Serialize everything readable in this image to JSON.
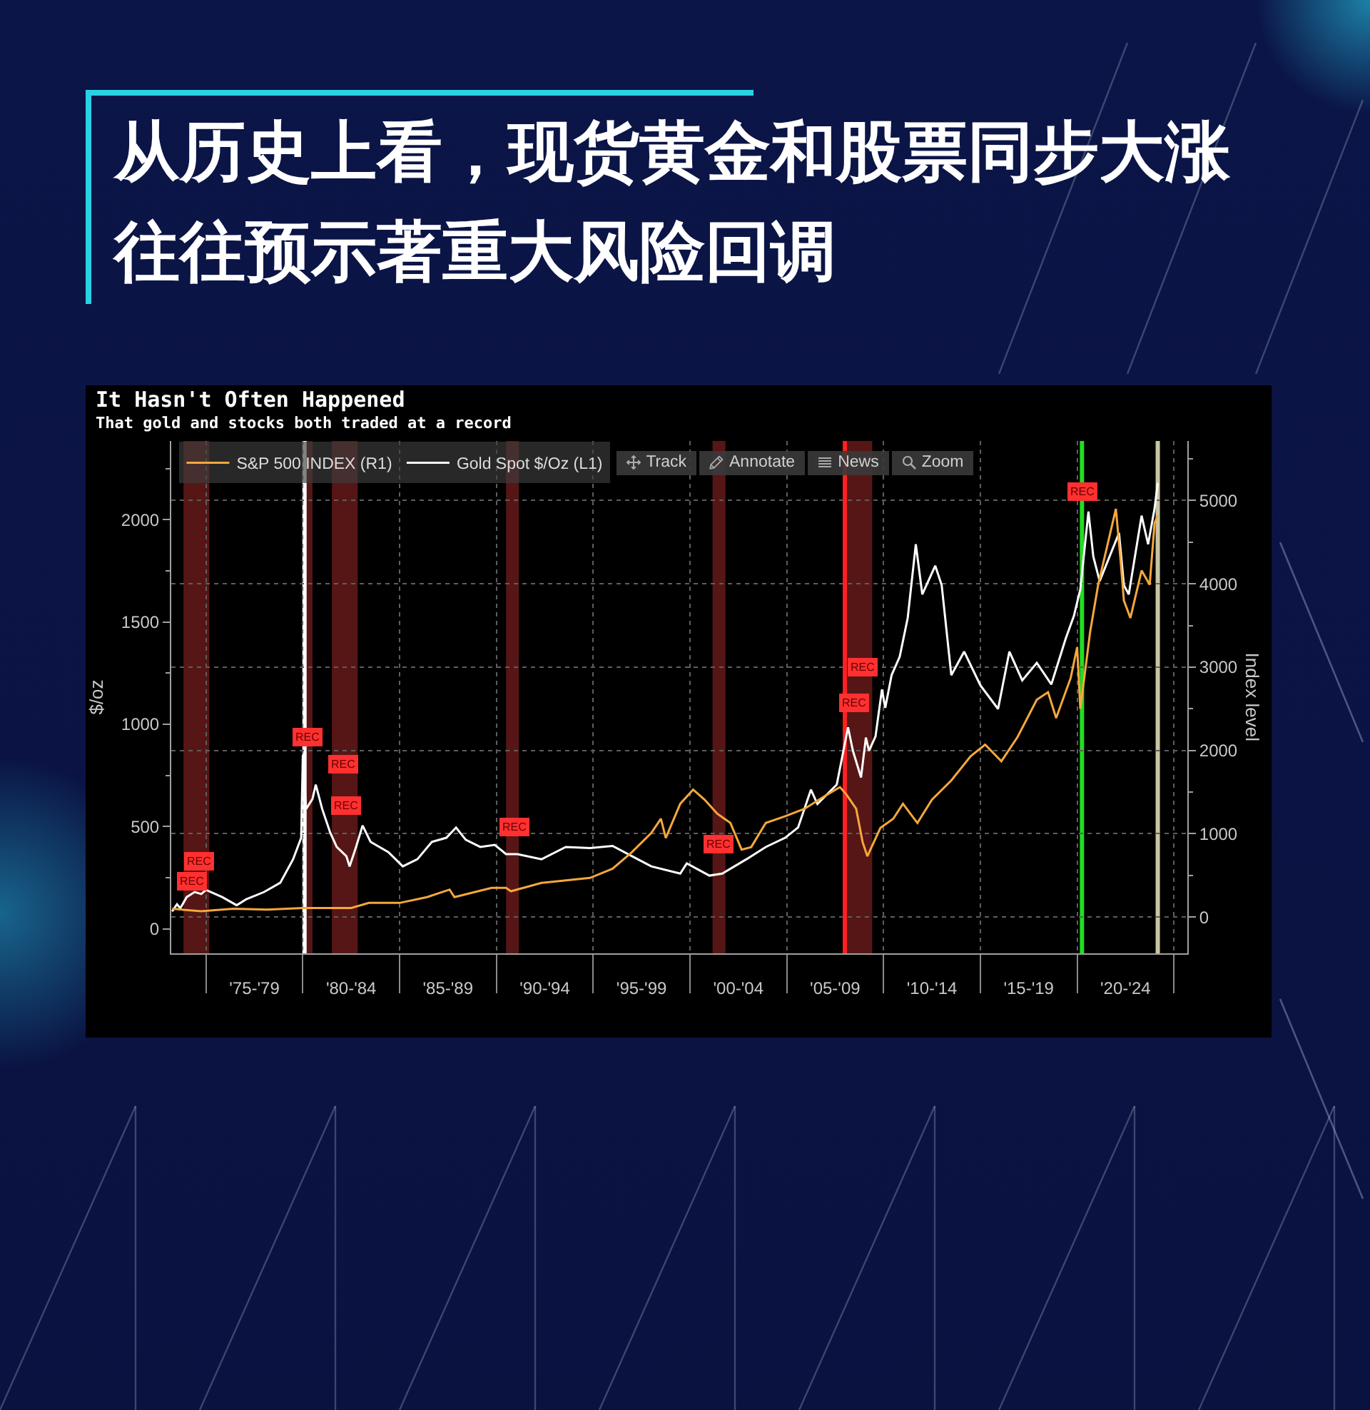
{
  "chart_data": {
    "type": "line",
    "title": "从历史上看，现货黄金和股票同步大涨往往预示著重大风险回调",
    "subtitle": "It Hasn't Often Happened",
    "annotations": [
      "That gold and stocks both traded at a record",
      "Track",
      "Annotate",
      "News",
      "Zoom",
      {
        "text": "REC",
        "x": "1974-09",
        "y": 330
      },
      {
        "text": "REC",
        "x": "1974-04",
        "y": 230
      },
      {
        "text": "REC",
        "x": "1980-04",
        "y": 935
      },
      {
        "text": "REC",
        "x": "1982-02",
        "y": 805
      },
      {
        "text": "REC",
        "x": "1982-04",
        "y": 605
      },
      {
        "text": "REC",
        "x": "1990-12",
        "y": 500
      },
      {
        "text": "REC",
        "x": "2001-07",
        "y": 415
      },
      {
        "text": "REC",
        "x": "2008-12",
        "y": 1280
      },
      {
        "text": "REC",
        "x": "2008-07",
        "y": 1105
      },
      {
        "text": "REC",
        "x": "2020-04",
        "y": 2140
      }
    ],
    "ylabel": "$/oz",
    "y2label": "Index level",
    "xlim": [
      "1973-03-15",
      "2025-09-10"
    ],
    "xticks": [
      {
        "value": "1975-01",
        "label": null
      },
      {
        "value": "1977-07",
        "label": "'75-'79"
      },
      {
        "value": "1980-01",
        "label": null
      },
      {
        "value": "1982-07",
        "label": "'80-'84"
      },
      {
        "value": "1985-01",
        "label": null
      },
      {
        "value": "1987-07",
        "label": "'85-'89"
      },
      {
        "value": "1990-01",
        "label": null
      },
      {
        "value": "1992-07",
        "label": "'90-'94"
      },
      {
        "value": "1995-01",
        "label": null
      },
      {
        "value": "1997-07",
        "label": "'95-'99"
      },
      {
        "value": "2000-01",
        "label": null
      },
      {
        "value": "2002-07",
        "label": "'00-'04"
      },
      {
        "value": "2005-01",
        "label": null
      },
      {
        "value": "2007-07",
        "label": "'05-'09"
      },
      {
        "value": "2010-01",
        "label": null
      },
      {
        "value": "2012-07",
        "label": "'10-'14"
      },
      {
        "value": "2015-01",
        "label": null
      },
      {
        "value": "2017-07",
        "label": "'15-'19"
      },
      {
        "value": "2020-01",
        "label": null
      },
      {
        "value": "2022-07",
        "label": "'20-'24"
      },
      {
        "value": "2025-01",
        "label": null
      }
    ],
    "ylim": [
      -120,
      2385
    ],
    "yticks": [
      0,
      {
        "value": 250,
        "label": null
      },
      500,
      {
        "value": 750,
        "label": null
      },
      1000,
      {
        "value": 1250,
        "label": null
      },
      1500,
      {
        "value": 1750,
        "label": null
      },
      2000,
      {
        "value": 2250,
        "label": null
      }
    ],
    "y2lim": [
      -435,
      5715
    ],
    "y2ticks": [
      0,
      {
        "value": 500,
        "label": null
      },
      1000,
      {
        "value": 1500,
        "label": null
      },
      2000,
      {
        "value": 2500,
        "label": null
      },
      3000,
      {
        "value": 3500,
        "label": null
      },
      4000,
      {
        "value": 4500,
        "label": null
      },
      5000,
      {
        "value": 5500,
        "label": null
      }
    ],
    "grid": true,
    "legend": "top left",
    "bands": [
      {
        "axis": "x",
        "from": "1973-11",
        "to": "1975-03",
        "color": "#561616"
      },
      {
        "axis": "x",
        "from": "1980-01",
        "to": "1980-07",
        "color": "#561616"
      },
      {
        "axis": "x",
        "from": "1981-07",
        "to": "1982-11",
        "color": "#561616"
      },
      {
        "axis": "x",
        "from": "1990-07",
        "to": "1991-03",
        "color": "#561616"
      },
      {
        "axis": "x",
        "from": "2001-03",
        "to": "2001-11",
        "color": "#561616"
      },
      {
        "axis": "x",
        "from": "2007-12",
        "to": "2009-06",
        "color": "#561616"
      }
    ],
    "ref_lines": [
      {
        "axis": "x",
        "value": "1980-02",
        "color": "#ffffff"
      },
      {
        "axis": "x",
        "value": "2008-01",
        "color": "#ff2020"
      },
      {
        "axis": "x",
        "value": "2020-04",
        "color": "#22dd22"
      },
      {
        "axis": "x",
        "value": "2024-03",
        "color": "#c9c4a2"
      }
    ],
    "series": [
      {
        "name": "S&P 500 INDEX (R1)",
        "color": "#f5a83c",
        "axis": "y2",
        "x": [
          "1973-04",
          "1974-10",
          "1976-06",
          "1978-03",
          "1980-01",
          "1982-07",
          "1983-06",
          "1985-01",
          "1986-06",
          "1987-08",
          "1987-11",
          "1989-10",
          "1990-07",
          "1990-10",
          "1992-05",
          "1994-11",
          "1996-01",
          "1997-01",
          "1998-01",
          "1998-07",
          "1998-10",
          "1999-07",
          "2000-03",
          "2000-10",
          "2001-06",
          "2002-02",
          "2002-09",
          "2003-03",
          "2003-12",
          "2004-12",
          "2005-12",
          "2007-02",
          "2007-10",
          "2008-02",
          "2008-08",
          "2008-12",
          "2009-03",
          "2009-11",
          "2010-07",
          "2011-01",
          "2011-10",
          "2012-07",
          "2013-07",
          "2014-07",
          "2015-04",
          "2016-02",
          "2016-12",
          "2017-12",
          "2018-07",
          "2018-12",
          "2019-09",
          "2020-01",
          "2020-03",
          "2020-09",
          "2021-02",
          "2021-10",
          "2022-01",
          "2022-04",
          "2022-06",
          "2022-10",
          "2023-05",
          "2023-10",
          "2024-01",
          "2024-03"
        ],
        "values": [
          100,
          70,
          100,
          90,
          110,
          110,
          170,
          170,
          240,
          330,
          240,
          350,
          350,
          310,
          410,
          470,
          580,
          780,
          1010,
          1180,
          950,
          1360,
          1530,
          1410,
          1240,
          1130,
          810,
          840,
          1130,
          1210,
          1300,
          1470,
          1560,
          1470,
          1300,
          900,
          730,
          1070,
          1180,
          1360,
          1130,
          1410,
          1640,
          1930,
          2070,
          1870,
          2160,
          2610,
          2700,
          2390,
          2870,
          3240,
          2500,
          3420,
          3990,
          4650,
          4900,
          4270,
          3800,
          3590,
          4160,
          3990,
          4730,
          4820
        ]
      },
      {
        "name": "Gold Spot $/Oz (L1)",
        "color": "#ffffff",
        "x": [
          "1973-04",
          "1973-07",
          "1973-09",
          "1974-01",
          "1974-06",
          "1974-10",
          "1975-01",
          "1975-11",
          "1976-08",
          "1977-02",
          "1978-01",
          "1978-11",
          "1979-07",
          "1979-12",
          "1980-01",
          "1980-03",
          "1980-07",
          "1980-09",
          "1981-01",
          "1981-06",
          "1981-10",
          "1982-04",
          "1982-06",
          "1982-10",
          "1983-02",
          "1983-07",
          "1984-06",
          "1985-03",
          "1985-12",
          "1986-09",
          "1987-06",
          "1987-12",
          "1988-06",
          "1989-03",
          "1989-12",
          "1990-07",
          "1991-02",
          "1992-05",
          "1993-08",
          "1994-11",
          "1996-01",
          "1997-01",
          "1998-01",
          "1999-07",
          "1999-11",
          "2001-01",
          "2001-09",
          "2002-12",
          "2003-12",
          "2004-12",
          "2005-08",
          "2006-04",
          "2006-08",
          "2007-08",
          "2008-03",
          "2008-06",
          "2008-11",
          "2009-02",
          "2009-04",
          "2009-08",
          "2009-12",
          "2010-02",
          "2010-06",
          "2010-11",
          "2011-04",
          "2011-09",
          "2012-01",
          "2012-09",
          "2013-01",
          "2013-07",
          "2014-03",
          "2015-01",
          "2015-12",
          "2016-07",
          "2017-03",
          "2017-12",
          "2018-09",
          "2019-06",
          "2019-11",
          "2020-03",
          "2020-08",
          "2020-11",
          "2021-03",
          "2022-03",
          "2022-06",
          "2022-09",
          "2023-05",
          "2023-09",
          "2024-01",
          "2024-03"
        ],
        "values": [
          85,
          120,
          100,
          155,
          180,
          170,
          190,
          155,
          115,
          145,
          180,
          225,
          340,
          445,
          850,
          585,
          635,
          705,
          585,
          470,
          400,
          355,
          305,
          400,
          505,
          425,
          375,
          305,
          340,
          425,
          445,
          495,
          435,
          400,
          410,
          365,
          365,
          340,
          400,
          395,
          405,
          355,
          305,
          270,
          320,
          260,
          270,
          340,
          400,
          445,
          495,
          680,
          610,
          705,
          985,
          870,
          740,
          935,
          870,
          940,
          1170,
          1080,
          1240,
          1330,
          1520,
          1880,
          1635,
          1775,
          1680,
          1240,
          1355,
          1190,
          1075,
          1355,
          1215,
          1300,
          1195,
          1420,
          1530,
          1660,
          2040,
          1820,
          1700,
          1935,
          1680,
          1635,
          2020,
          1880,
          2055,
          2180
        ]
      }
    ]
  }
}
